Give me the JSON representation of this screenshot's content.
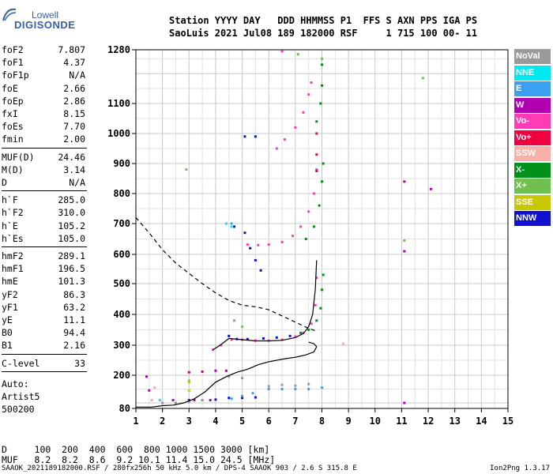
{
  "logo": {
    "line1": "Lowell",
    "line2": "DIGISONDE"
  },
  "header": {
    "line1": "Station YYYY DAY   DDD HHMMSS P1  FFS S AXN PPS IGA PS",
    "line2": "SaoLuis 2021 Jul08 189 182000 RSF     1 715 100 00- 11"
  },
  "params_group1": [
    {
      "label": "foF2",
      "value": "7.807"
    },
    {
      "label": "foF1",
      "value": "4.37"
    },
    {
      "label": "foF1p",
      "value": "N/A"
    },
    {
      "label": "foE",
      "value": "2.66"
    },
    {
      "label": "foEp",
      "value": "2.86"
    },
    {
      "label": "fxI",
      "value": "8.15"
    },
    {
      "label": "foEs",
      "value": "7.70"
    },
    {
      "label": "fmin",
      "value": "2.00"
    }
  ],
  "params_group2": [
    {
      "label": "MUF(D)",
      "value": "24.46"
    },
    {
      "label": "M(D)",
      "value": "3.14"
    },
    {
      "label": "D",
      "value": "N/A"
    }
  ],
  "params_group3": [
    {
      "label": "h`F",
      "value": "285.0"
    },
    {
      "label": "h`F2",
      "value": "310.0"
    },
    {
      "label": "h`E",
      "value": "105.2"
    },
    {
      "label": "h`Es",
      "value": "105.0"
    }
  ],
  "params_group4": [
    {
      "label": "hmF2",
      "value": "289.1"
    },
    {
      "label": "hmF1",
      "value": "196.5"
    },
    {
      "label": "hmE",
      "value": "101.3"
    },
    {
      "label": "yF2",
      "value": "86.3"
    },
    {
      "label": "yF1",
      "value": "63.2"
    },
    {
      "label": "yE",
      "value": "11.1"
    },
    {
      "label": "B0",
      "value": "94.4"
    },
    {
      "label": "B1",
      "value": "2.16"
    }
  ],
  "params_group5": [
    {
      "label": "C-level",
      "value": "33"
    }
  ],
  "autoscaling": [
    "Auto:",
    "Artist5",
    "500200"
  ],
  "legend": [
    {
      "label": "NoVal",
      "color": "#9a9a9a"
    },
    {
      "label": "NNE",
      "color": "#00e8f0"
    },
    {
      "label": "E",
      "color": "#3aa0f0"
    },
    {
      "label": "W",
      "color": "#b000b0"
    },
    {
      "label": "Vo-",
      "color": "#ff3cb4"
    },
    {
      "label": "Vo+",
      "color": "#f00040"
    },
    {
      "label": "SSW",
      "color": "#f8b0a8"
    },
    {
      "label": "X-",
      "color": "#00901c"
    },
    {
      "label": "X+",
      "color": "#70c050"
    },
    {
      "label": "SSE",
      "color": "#c8c800"
    },
    {
      "label": "NNW",
      "color": "#1010d0"
    }
  ],
  "muf_table": {
    "row1": "D     100  200  400  600  800 1000 1500 3000 [km]",
    "row2": "MUF   8.2  8.2  8.6  9.2 10.1 11.4 15.0 24.5 [MHz]"
  },
  "footer": {
    "left": "SAAOK_2021189182000.RSF / 280fx256h 50 kHz 5.0 km / DPS-4 SAAOK 903 / 2.6 S 315.8 E",
    "right": "Ion2Png 1.3.17"
  },
  "chart_data": {
    "type": "scatter",
    "x_ticks": [
      1,
      2,
      3,
      4,
      5,
      6,
      7,
      8,
      9,
      10,
      11,
      12,
      13,
      14,
      15
    ],
    "y_ticks": [
      80,
      200,
      300,
      400,
      500,
      600,
      700,
      800,
      900,
      1000,
      1100,
      1280
    ],
    "xlim": [
      1,
      15
    ],
    "ylim": [
      80,
      1280
    ],
    "grid": true,
    "series": [
      {
        "color": "#ff3cb4",
        "points": [
          [
            3.9,
            285
          ],
          [
            4.2,
            300
          ],
          [
            4.6,
            318
          ],
          [
            5.0,
            318
          ],
          [
            5.5,
            315
          ],
          [
            6.0,
            315
          ],
          [
            6.5,
            318
          ],
          [
            7.0,
            328
          ],
          [
            7.3,
            340
          ],
          [
            7.6,
            370
          ],
          [
            7.75,
            430
          ],
          [
            7.8,
            520
          ],
          [
            5.2,
            632
          ],
          [
            5.6,
            630
          ],
          [
            6.0,
            632
          ],
          [
            6.5,
            640
          ],
          [
            6.9,
            660
          ],
          [
            7.2,
            690
          ],
          [
            7.5,
            740
          ],
          [
            7.7,
            800
          ],
          [
            7.8,
            880
          ],
          [
            6.3,
            950
          ],
          [
            6.6,
            980
          ],
          [
            7.0,
            1020
          ],
          [
            7.3,
            1070
          ],
          [
            7.5,
            1130
          ],
          [
            7.6,
            1170
          ],
          [
            6.5,
            1275
          ]
        ]
      },
      {
        "color": "#00901c",
        "points": [
          [
            7.2,
            340
          ],
          [
            7.5,
            350
          ],
          [
            7.8,
            380
          ],
          [
            7.95,
            420
          ],
          [
            8.0,
            480
          ],
          [
            8.05,
            530
          ],
          [
            7.4,
            650
          ],
          [
            7.7,
            690
          ],
          [
            7.9,
            760
          ],
          [
            8.0,
            840
          ],
          [
            8.05,
            900
          ],
          [
            7.8,
            1040
          ],
          [
            7.95,
            1100
          ],
          [
            8.0,
            1160
          ],
          [
            8.0,
            1230
          ]
        ]
      },
      {
        "color": "#1010d0",
        "points": [
          [
            4.5,
            330
          ],
          [
            4.8,
            320
          ],
          [
            5.2,
            320
          ],
          [
            5.8,
            322
          ],
          [
            6.3,
            325
          ],
          [
            6.8,
            330
          ],
          [
            4.7,
            690
          ],
          [
            5.1,
            670
          ],
          [
            5.3,
            620
          ],
          [
            5.5,
            580
          ],
          [
            5.7,
            545
          ],
          [
            5.1,
            990
          ],
          [
            5.5,
            990
          ],
          [
            3.0,
            110
          ],
          [
            3.5,
            110
          ],
          [
            4.0,
            112
          ],
          [
            4.5,
            118
          ],
          [
            5.0,
            118
          ],
          [
            5.5,
            120
          ]
        ]
      },
      {
        "color": "#3aa0f0",
        "points": [
          [
            4.6,
            115
          ],
          [
            5.0,
            125
          ],
          [
            5.4,
            135
          ],
          [
            6.0,
            150
          ],
          [
            6.5,
            150
          ],
          [
            7.0,
            150
          ],
          [
            7.5,
            150
          ],
          [
            8.0,
            155
          ],
          [
            4.6,
            700
          ]
        ]
      },
      {
        "color": "#b000b0",
        "points": [
          [
            3.0,
            210
          ],
          [
            3.5,
            212
          ],
          [
            4.0,
            215
          ],
          [
            4.4,
            215
          ],
          [
            1.4,
            195
          ],
          [
            1.5,
            145
          ],
          [
            2.4,
            110
          ],
          [
            3.2,
            110
          ],
          [
            3.8,
            110
          ],
          [
            11.1,
            840
          ],
          [
            12.1,
            815
          ],
          [
            11.1,
            610
          ],
          [
            11.1,
            100
          ]
        ]
      },
      {
        "color": "#9a9a9a",
        "points": [
          [
            2.0,
            100
          ],
          [
            2.5,
            100
          ],
          [
            3.0,
            105
          ],
          [
            3.5,
            110
          ],
          [
            6.0,
            160
          ],
          [
            6.5,
            165
          ],
          [
            7.0,
            162
          ],
          [
            7.5,
            168
          ],
          [
            3.0,
            180
          ],
          [
            4.5,
            195
          ],
          [
            5.0,
            190
          ]
        ]
      },
      {
        "color": "#70c050",
        "points": [
          [
            4.7,
            380
          ],
          [
            5.0,
            360
          ],
          [
            7.1,
            1265
          ],
          [
            8.0,
            1250
          ],
          [
            11.1,
            645
          ],
          [
            11.8,
            1185
          ],
          [
            2.9,
            880
          ]
        ]
      },
      {
        "color": "#00e8f0",
        "points": [
          [
            1.9,
            110
          ],
          [
            4.4,
            700
          ],
          [
            4.6,
            690
          ]
        ]
      },
      {
        "color": "#f00040",
        "points": [
          [
            7.8,
            875
          ],
          [
            7.8,
            930
          ],
          [
            7.8,
            1000
          ]
        ]
      },
      {
        "color": "#c8c800",
        "points": [
          [
            3.0,
            175
          ],
          [
            3.0,
            145
          ]
        ]
      },
      {
        "color": "#f8b0a8",
        "points": [
          [
            8.8,
            305
          ],
          [
            1.7,
            155
          ],
          [
            1.6,
            110
          ]
        ]
      }
    ],
    "lines": [
      {
        "name": "dashed",
        "color": "#000000",
        "dashed": true,
        "points": [
          [
            1.0,
            720
          ],
          [
            1.5,
            670
          ],
          [
            2.0,
            615
          ],
          [
            2.5,
            570
          ],
          [
            3.0,
            535
          ],
          [
            3.5,
            500
          ],
          [
            4.0,
            470
          ],
          [
            4.5,
            445
          ],
          [
            5.0,
            430
          ],
          [
            5.5,
            425
          ],
          [
            6.0,
            415
          ],
          [
            6.5,
            395
          ],
          [
            7.0,
            375
          ],
          [
            7.5,
            355
          ],
          [
            7.8,
            345
          ]
        ]
      },
      {
        "name": "solid",
        "color": "#000000",
        "dashed": false,
        "points": [
          [
            1.0,
            85
          ],
          [
            1.6,
            85
          ],
          [
            2.0,
            90
          ],
          [
            2.4,
            92
          ],
          [
            2.8,
            100
          ],
          [
            3.2,
            115
          ],
          [
            3.6,
            140
          ],
          [
            4.0,
            175
          ],
          [
            4.4,
            195
          ],
          [
            4.8,
            210
          ],
          [
            5.2,
            220
          ],
          [
            5.6,
            235
          ],
          [
            6.0,
            245
          ],
          [
            6.6,
            255
          ],
          [
            7.0,
            260
          ],
          [
            7.4,
            268
          ],
          [
            7.7,
            278
          ],
          [
            7.8,
            295
          ],
          [
            7.7,
            305
          ],
          [
            7.5,
            310
          ]
        ]
      },
      {
        "name": "trace",
        "color": "#000000",
        "dashed": false,
        "points": [
          [
            3.9,
            285
          ],
          [
            4.2,
            302
          ],
          [
            4.5,
            322
          ],
          [
            5.0,
            318
          ],
          [
            5.5,
            314
          ],
          [
            6.0,
            314
          ],
          [
            6.5,
            316
          ],
          [
            7.0,
            325
          ],
          [
            7.3,
            338
          ],
          [
            7.5,
            360
          ],
          [
            7.65,
            400
          ],
          [
            7.75,
            480
          ],
          [
            7.8,
            580
          ]
        ]
      }
    ]
  }
}
